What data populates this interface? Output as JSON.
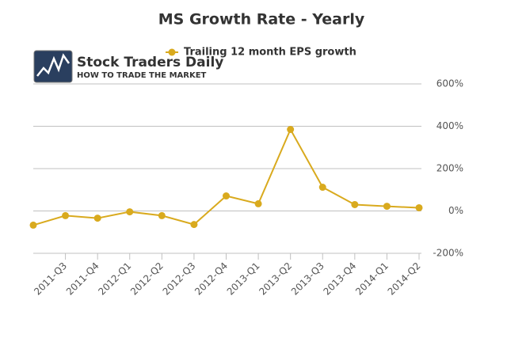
{
  "chart_data": {
    "type": "line",
    "title": "MS Growth Rate - Yearly",
    "categories": [
      null,
      "2011-Q3",
      "2011-Q4",
      "2012-Q1",
      "2012-Q2",
      "2012-Q3",
      "2012-Q4",
      "2013-Q1",
      "2013-Q2",
      "2013-Q3",
      "2013-Q4",
      "2014-Q1",
      "2014-Q2"
    ],
    "series": [
      {
        "name": "Trailing 12 month EPS growth",
        "color": "#d9aa1e",
        "values": [
          -67,
          -22,
          -34,
          -4,
          -22,
          -64,
          71,
          34,
          385,
          112,
          30,
          22,
          15
        ]
      }
    ],
    "ylim": [
      -200,
      600
    ],
    "yticks": [
      {
        "value": -200,
        "label": "-200%"
      },
      {
        "value": 0,
        "label": "0%"
      },
      {
        "value": 200,
        "label": "200%"
      },
      {
        "value": 400,
        "label": "400%"
      },
      {
        "value": 600,
        "label": "600%"
      }
    ],
    "grid": true,
    "legend": "top"
  },
  "logo": {
    "title": "Stock Traders Daily",
    "subtitle": "HOW TO TRADE THE MARKET"
  }
}
